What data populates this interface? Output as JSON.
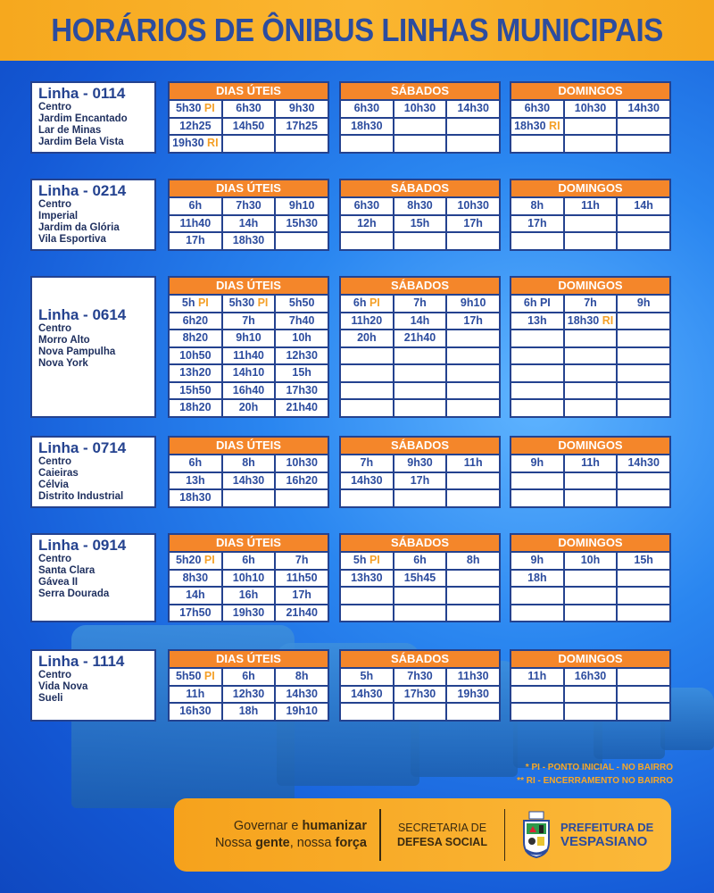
{
  "title": "HORÁRIOS DE ÔNIBUS LINHAS MUNICIPAIS",
  "colors": {
    "orange": "#f4862a",
    "blue": "#2c4c9e",
    "tag": "#f4a028"
  },
  "column_headers": [
    "DIAS ÚTEIS",
    "SÁBADOS",
    "DOMINGOS"
  ],
  "lines": [
    {
      "name": "Linha - 0114",
      "neighborhoods": [
        "Centro",
        "Jardim Encantado",
        "Lar de Minas",
        "Jardim Bela Vista"
      ],
      "uteis": [
        [
          {
            "t": "5h30",
            "tag": "PI"
          },
          {
            "t": "6h30"
          },
          {
            "t": "9h30"
          }
        ],
        [
          {
            "t": "12h25"
          },
          {
            "t": "14h50"
          },
          {
            "t": "17h25"
          }
        ],
        [
          {
            "t": "19h30",
            "tag": "RI"
          },
          {
            "t": ""
          },
          {
            "t": ""
          }
        ]
      ],
      "sabados": [
        [
          {
            "t": "6h30"
          },
          {
            "t": "10h30"
          },
          {
            "t": "14h30"
          }
        ],
        [
          {
            "t": "18h30"
          },
          {
            "t": ""
          },
          {
            "t": ""
          }
        ],
        [
          {
            "t": ""
          },
          {
            "t": ""
          },
          {
            "t": ""
          }
        ]
      ],
      "domingos": [
        [
          {
            "t": "6h30"
          },
          {
            "t": "10h30"
          },
          {
            "t": "14h30"
          }
        ],
        [
          {
            "t": "18h30",
            "tag": "RI"
          },
          {
            "t": ""
          },
          {
            "t": ""
          }
        ],
        [
          {
            "t": ""
          },
          {
            "t": ""
          },
          {
            "t": ""
          }
        ]
      ]
    },
    {
      "name": "Linha - 0214",
      "neighborhoods": [
        "Centro",
        "Imperial",
        "Jardim da Glória",
        "Vila Esportiva"
      ],
      "uteis": [
        [
          {
            "t": "6h"
          },
          {
            "t": "7h30"
          },
          {
            "t": "9h10"
          }
        ],
        [
          {
            "t": "11h40"
          },
          {
            "t": "14h"
          },
          {
            "t": "15h30"
          }
        ],
        [
          {
            "t": "17h"
          },
          {
            "t": "18h30"
          },
          {
            "t": ""
          }
        ]
      ],
      "sabados": [
        [
          {
            "t": "6h30"
          },
          {
            "t": "8h30"
          },
          {
            "t": "10h30"
          }
        ],
        [
          {
            "t": "12h"
          },
          {
            "t": "15h"
          },
          {
            "t": "17h"
          }
        ],
        [
          {
            "t": ""
          },
          {
            "t": ""
          },
          {
            "t": ""
          }
        ]
      ],
      "domingos": [
        [
          {
            "t": "8h"
          },
          {
            "t": "11h"
          },
          {
            "t": "14h"
          }
        ],
        [
          {
            "t": "17h"
          },
          {
            "t": ""
          },
          {
            "t": ""
          }
        ],
        [
          {
            "t": ""
          },
          {
            "t": ""
          },
          {
            "t": ""
          }
        ]
      ]
    },
    {
      "name": "Linha - 0614",
      "neighborhoods": [
        "Centro",
        "Morro Alto",
        "Nova Pampulha",
        "Nova York"
      ],
      "centered": true,
      "uteis": [
        [
          {
            "t": "5h",
            "tag": "PI"
          },
          {
            "t": "5h30",
            "tag": "PI"
          },
          {
            "t": "5h50"
          }
        ],
        [
          {
            "t": "6h20"
          },
          {
            "t": "7h"
          },
          {
            "t": "7h40"
          }
        ],
        [
          {
            "t": "8h20"
          },
          {
            "t": "9h10"
          },
          {
            "t": "10h"
          }
        ],
        [
          {
            "t": "10h50"
          },
          {
            "t": "11h40"
          },
          {
            "t": "12h30"
          }
        ],
        [
          {
            "t": "13h20"
          },
          {
            "t": "14h10"
          },
          {
            "t": "15h"
          }
        ],
        [
          {
            "t": "15h50"
          },
          {
            "t": "16h40"
          },
          {
            "t": "17h30"
          }
        ],
        [
          {
            "t": "18h20"
          },
          {
            "t": "20h"
          },
          {
            "t": "21h40"
          }
        ]
      ],
      "sabados": [
        [
          {
            "t": "6h",
            "tag": "PI"
          },
          {
            "t": "7h"
          },
          {
            "t": "9h10"
          }
        ],
        [
          {
            "t": "11h20"
          },
          {
            "t": "14h"
          },
          {
            "t": "17h"
          }
        ],
        [
          {
            "t": "20h"
          },
          {
            "t": "21h40"
          },
          {
            "t": ""
          }
        ],
        [
          {
            "t": ""
          },
          {
            "t": ""
          },
          {
            "t": ""
          }
        ],
        [
          {
            "t": ""
          },
          {
            "t": ""
          },
          {
            "t": ""
          }
        ],
        [
          {
            "t": ""
          },
          {
            "t": ""
          },
          {
            "t": ""
          }
        ],
        [
          {
            "t": ""
          },
          {
            "t": ""
          },
          {
            "t": ""
          }
        ]
      ],
      "domingos": [
        [
          {
            "t": "6h PI"
          },
          {
            "t": "7h"
          },
          {
            "t": "9h"
          }
        ],
        [
          {
            "t": "13h"
          },
          {
            "t": "18h30",
            "tag": "RI"
          },
          {
            "t": ""
          }
        ],
        [
          {
            "t": ""
          },
          {
            "t": ""
          },
          {
            "t": ""
          }
        ],
        [
          {
            "t": ""
          },
          {
            "t": ""
          },
          {
            "t": ""
          }
        ],
        [
          {
            "t": ""
          },
          {
            "t": ""
          },
          {
            "t": ""
          }
        ],
        [
          {
            "t": ""
          },
          {
            "t": ""
          },
          {
            "t": ""
          }
        ],
        [
          {
            "t": ""
          },
          {
            "t": ""
          },
          {
            "t": ""
          }
        ]
      ]
    },
    {
      "name": "Linha - 0714",
      "neighborhoods": [
        "Centro",
        "Caieiras",
        "Célvia",
        "Distrito Industrial"
      ],
      "uteis": [
        [
          {
            "t": "6h"
          },
          {
            "t": "8h"
          },
          {
            "t": "10h30"
          }
        ],
        [
          {
            "t": "13h"
          },
          {
            "t": "14h30"
          },
          {
            "t": "16h20"
          }
        ],
        [
          {
            "t": "18h30"
          },
          {
            "t": ""
          },
          {
            "t": ""
          }
        ]
      ],
      "sabados": [
        [
          {
            "t": "7h"
          },
          {
            "t": "9h30"
          },
          {
            "t": "11h"
          }
        ],
        [
          {
            "t": "14h30"
          },
          {
            "t": "17h"
          },
          {
            "t": ""
          }
        ],
        [
          {
            "t": ""
          },
          {
            "t": ""
          },
          {
            "t": ""
          }
        ]
      ],
      "domingos": [
        [
          {
            "t": "9h"
          },
          {
            "t": "11h"
          },
          {
            "t": "14h30"
          }
        ],
        [
          {
            "t": ""
          },
          {
            "t": ""
          },
          {
            "t": ""
          }
        ],
        [
          {
            "t": ""
          },
          {
            "t": ""
          },
          {
            "t": ""
          }
        ]
      ]
    },
    {
      "name": "Linha - 0914",
      "neighborhoods": [
        "Centro",
        "Santa Clara",
        "Gávea II",
        "Serra Dourada"
      ],
      "uteis": [
        [
          {
            "t": "5h20",
            "tag": "PI"
          },
          {
            "t": "6h"
          },
          {
            "t": "7h"
          }
        ],
        [
          {
            "t": "8h30"
          },
          {
            "t": "10h10"
          },
          {
            "t": "11h50"
          }
        ],
        [
          {
            "t": "14h"
          },
          {
            "t": "16h"
          },
          {
            "t": "17h"
          }
        ],
        [
          {
            "t": "17h50"
          },
          {
            "t": "19h30"
          },
          {
            "t": "21h40"
          }
        ]
      ],
      "sabados": [
        [
          {
            "t": "5h",
            "tag": "PI"
          },
          {
            "t": "6h"
          },
          {
            "t": "8h"
          }
        ],
        [
          {
            "t": "13h30"
          },
          {
            "t": "15h45"
          },
          {
            "t": ""
          }
        ],
        [
          {
            "t": ""
          },
          {
            "t": ""
          },
          {
            "t": ""
          }
        ],
        [
          {
            "t": ""
          },
          {
            "t": ""
          },
          {
            "t": ""
          }
        ]
      ],
      "domingos": [
        [
          {
            "t": "9h"
          },
          {
            "t": "10h"
          },
          {
            "t": "15h"
          }
        ],
        [
          {
            "t": "18h"
          },
          {
            "t": ""
          },
          {
            "t": ""
          }
        ],
        [
          {
            "t": ""
          },
          {
            "t": ""
          },
          {
            "t": ""
          }
        ],
        [
          {
            "t": ""
          },
          {
            "t": ""
          },
          {
            "t": ""
          }
        ]
      ]
    },
    {
      "name": "Linha - 1114",
      "neighborhoods": [
        "Centro",
        "Vida Nova",
        "Sueli"
      ],
      "uteis": [
        [
          {
            "t": "5h50",
            "tag": "PI"
          },
          {
            "t": "6h"
          },
          {
            "t": "8h"
          }
        ],
        [
          {
            "t": "11h"
          },
          {
            "t": "12h30"
          },
          {
            "t": "14h30"
          }
        ],
        [
          {
            "t": "16h30"
          },
          {
            "t": "18h"
          },
          {
            "t": "19h10"
          }
        ]
      ],
      "sabados": [
        [
          {
            "t": "5h"
          },
          {
            "t": "7h30"
          },
          {
            "t": "11h30"
          }
        ],
        [
          {
            "t": "14h30"
          },
          {
            "t": "17h30"
          },
          {
            "t": "19h30"
          }
        ],
        [
          {
            "t": ""
          },
          {
            "t": ""
          },
          {
            "t": ""
          }
        ]
      ],
      "domingos": [
        [
          {
            "t": "11h"
          },
          {
            "t": "16h30"
          },
          {
            "t": ""
          }
        ],
        [
          {
            "t": ""
          },
          {
            "t": ""
          },
          {
            "t": ""
          }
        ],
        [
          {
            "t": ""
          },
          {
            "t": ""
          },
          {
            "t": ""
          }
        ]
      ]
    }
  ],
  "notes": [
    "* PI - PONTO INICIAL - NO BAIRRO",
    "** RI - ENCERRAMENTO NO BAIRRO"
  ],
  "footer": {
    "slogan1a": "Governar e ",
    "slogan1b": "humanizar",
    "slogan2a": "Nossa ",
    "slogan2b": "gente",
    ", ": "",
    "slogan2c": ", nossa ",
    "slogan2d": "força",
    "sec1": "SECRETARIA DE",
    "sec2": "DEFESA SOCIAL",
    "pref1": "PREFEITURA DE",
    "pref2": "VESPASIANO"
  }
}
